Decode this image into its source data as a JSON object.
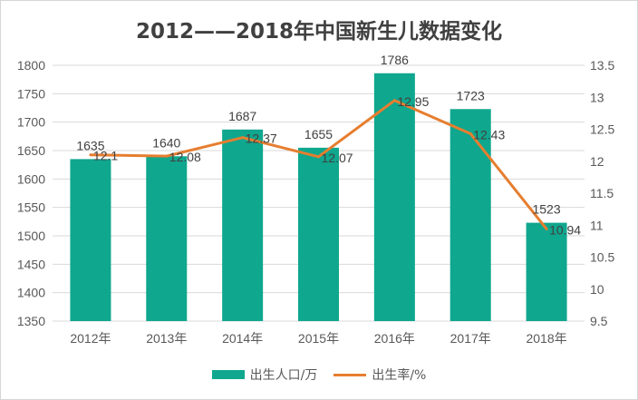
{
  "colors": {
    "bar": "#0fa78e",
    "line": "#e67e30",
    "grid": "#d9d9d9"
  },
  "chart_data": {
    "type": "bar",
    "title": "2012——2018年中国新生儿数据变化",
    "categories": [
      "2012年",
      "2013年",
      "2014年",
      "2015年",
      "2016年",
      "2017年",
      "2018年"
    ],
    "series": [
      {
        "name": "出生人口/万",
        "type": "bar",
        "axis": "left",
        "values": [
          1635,
          1640,
          1687,
          1655,
          1786,
          1723,
          1523
        ]
      },
      {
        "name": "出生率/%",
        "type": "line",
        "axis": "right",
        "values": [
          12.1,
          12.08,
          12.37,
          12.07,
          12.95,
          12.43,
          10.94
        ]
      }
    ],
    "y_left": {
      "min": 1350,
      "max": 1800,
      "step": 50,
      "ticks": [
        "1350",
        "1400",
        "1450",
        "1500",
        "1550",
        "1600",
        "1650",
        "1700",
        "1750",
        "1800"
      ]
    },
    "y_right": {
      "min": 9.5,
      "max": 13.5,
      "step": 0.5,
      "ticks": [
        "9.5",
        "10",
        "10.5",
        "11",
        "11.5",
        "12",
        "12.5",
        "13",
        "13.5"
      ]
    },
    "value_labels_left": [
      "1635",
      "1640",
      "1687",
      "1655",
      "1786",
      "1723",
      "1523"
    ],
    "value_labels_right": [
      "12.1",
      "12.08",
      "12.37",
      "12.07",
      "12.95",
      "12.43",
      "10.94"
    ],
    "grid": true,
    "legend_position": "bottom"
  }
}
